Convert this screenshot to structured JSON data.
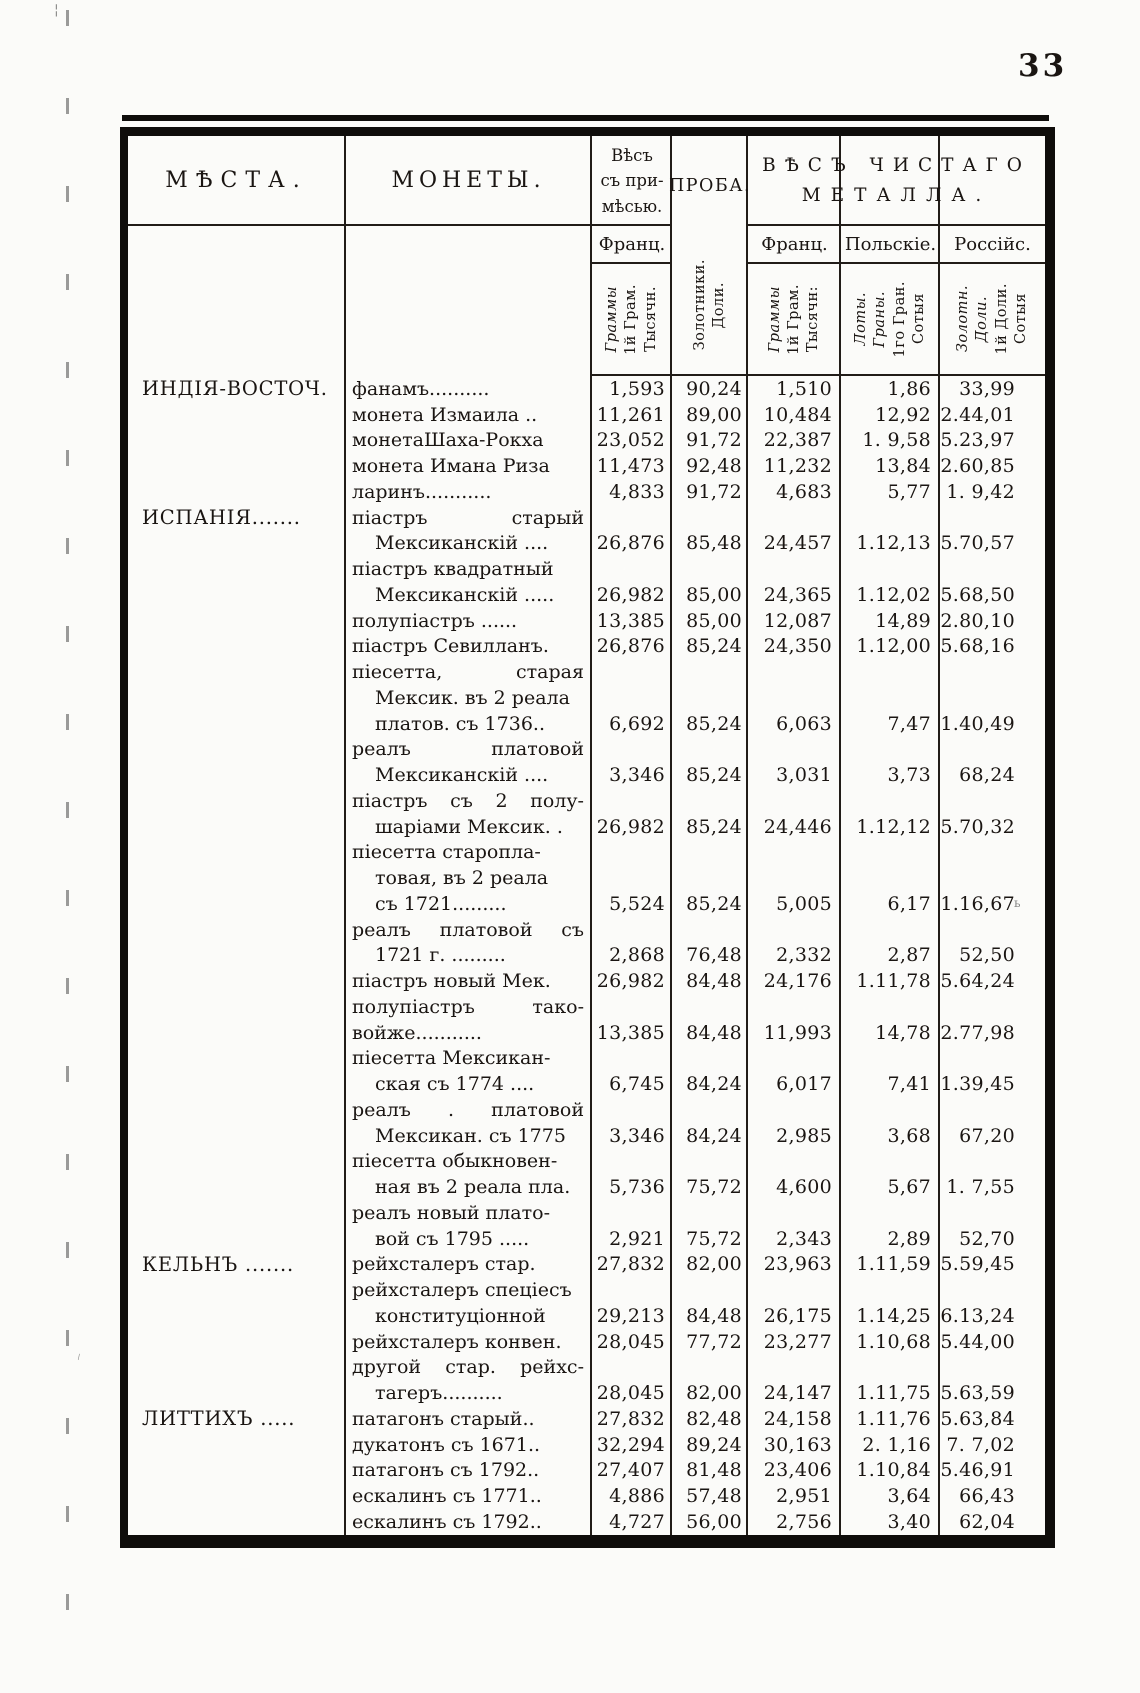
{
  "page": {
    "number": "33",
    "paper_color": "#fbfbf9",
    "ink_color": "#1a1512"
  },
  "header": {
    "col_places": "МѢСТА.",
    "col_coins": "МОНЕТЫ.",
    "col_gross": [
      "Вѣсъ",
      "съ при-",
      "мѣсью."
    ],
    "col_proba": "ПРОБА.",
    "col_pure": [
      "ВѢСЪ ЧИСТАГО",
      "МЕТАЛЛА."
    ],
    "sub_labels": {
      "gross_franc": "Франц.",
      "pure_franc": "Франц.",
      "pure_polish": "Польскіе.",
      "pure_russian": "Россійс."
    },
    "rotated_units": {
      "gross_franc": [
        {
          "t": "Граммы",
          "i": 1
        },
        {
          "t": "1й Грам."
        },
        {
          "t": "Тысячн."
        }
      ],
      "proba": [
        {
          "t": "Золотники."
        },
        {
          "t": "Доли."
        }
      ],
      "pure_franc": [
        {
          "t": "Граммы",
          "i": 1
        },
        {
          "t": "1й Грам."
        },
        {
          "t": "Тысячн:"
        }
      ],
      "pure_polish": [
        {
          "t": "Лоты.",
          "i": 1
        },
        {
          "t": "Граны.",
          "i": 1
        },
        {
          "t": "1го Гран."
        },
        {
          "t": "Сотыя"
        }
      ],
      "pure_russian": [
        {
          "t": "Золотн.",
          "i": 1
        },
        {
          "t": "Доли.",
          "i": 1
        },
        {
          "t": "1й Доли."
        },
        {
          "t": "Сотыя"
        }
      ]
    }
  },
  "rows": [
    {
      "p": "ИНДІЯ-ВОСТОЧ.",
      "c": "фанамъ..........",
      "v": [
        "1,593",
        "90,24",
        "1,510",
        "1,86",
        "33,99"
      ]
    },
    {
      "c": "монета Измаила ..",
      "v": [
        "11,261",
        "89,00",
        "10,484",
        "12,92",
        "2.44,01"
      ]
    },
    {
      "c": "монетаШаха-Рокха",
      "v": [
        "23,052",
        "91,72",
        "22,387",
        "1. 9,58",
        "5.23,97"
      ]
    },
    {
      "c": "монета Имана Риза",
      "v": [
        "11,473",
        "92,48",
        "11,232",
        "13,84",
        "2.60,85"
      ]
    },
    {
      "c": "ларинъ...........",
      "v": [
        "4,833",
        "91,72",
        "4,683",
        "5,77",
        "1. 9,42"
      ]
    },
    {
      "p": "ИСПАНІЯ.......",
      "c": "піастръ старый",
      "j": 1
    },
    {
      "c": "Мексиканскій ....",
      "ind": 1,
      "v": [
        "26,876",
        "85,48",
        "24,457",
        "1.12,13",
        "5.70,57"
      ]
    },
    {
      "c": "піастръ квадратный"
    },
    {
      "c": "Мексиканскій .....",
      "ind": 1,
      "v": [
        "26,982",
        "85,00",
        "24,365",
        "1.12,02",
        "5.68,50"
      ]
    },
    {
      "c": "полупіастръ ......",
      "v": [
        "13,385",
        "85,00",
        "12,087",
        "14,89",
        "2.80,10"
      ]
    },
    {
      "c": "піастръ Севилланъ.",
      "v": [
        "26,876",
        "85,24",
        "24,350",
        "1.12,00",
        "5.68,16"
      ]
    },
    {
      "c": "піесетта, старая",
      "j": 1
    },
    {
      "c": "Мексик. въ 2 реала",
      "ind": 1
    },
    {
      "c": "платов. съ 1736..",
      "ind": 1,
      "v": [
        "6,692",
        "85,24",
        "6,063",
        "7,47",
        "1.40,49"
      ]
    },
    {
      "c": "реалъ платовой",
      "j": 1
    },
    {
      "c": "Мексиканскій ....",
      "ind": 1,
      "v": [
        "3,346",
        "85,24",
        "3,031",
        "3,73",
        "68,24"
      ]
    },
    {
      "c": "піастръ съ 2 полу-",
      "j": 1
    },
    {
      "c": "шаріами Мексик. .",
      "ind": 1,
      "v": [
        "26,982",
        "85,24",
        "24,446",
        "1.12,12",
        "5.70,32"
      ]
    },
    {
      "c": "піесетта старопла-"
    },
    {
      "c": "товая, въ 2 реала",
      "ind": 1
    },
    {
      "c": "съ 1721.........",
      "ind": 1,
      "v": [
        "5,524",
        "85,24",
        "5,005",
        "6,17",
        "1.16,67"
      ]
    },
    {
      "c": "реалъ платовой съ",
      "j": 1
    },
    {
      "c": "1721 г. .........",
      "ind": 1,
      "v": [
        "2,868",
        "76,48",
        "2,332",
        "2,87",
        "52,50"
      ]
    },
    {
      "c": "піастръ новый Мек.",
      "v": [
        "26,982",
        "84,48",
        "24,176",
        "1.11,78",
        "5.64,24"
      ]
    },
    {
      "c": "полупіастръ тако-",
      "j": 1
    },
    {
      "c": "войже...........",
      "v": [
        "13,385",
        "84,48",
        "11,993",
        "14,78",
        "2.77,98"
      ]
    },
    {
      "c": "піесетта Мексикан-"
    },
    {
      "c": "ская съ 1774 ....",
      "ind": 1,
      "v": [
        "6,745",
        "84,24",
        "6,017",
        "7,41",
        "1.39,45"
      ]
    },
    {
      "c": "реалъ . платовой",
      "j": 1
    },
    {
      "c": "Мексикан. съ 1775",
      "ind": 1,
      "v": [
        "3,346",
        "84,24",
        "2,985",
        "3,68",
        "67,20"
      ]
    },
    {
      "c": "піесетта обыкновен-"
    },
    {
      "c": "ная въ 2 реала пла.",
      "ind": 1,
      "v": [
        "5,736",
        "75,72",
        "4,600",
        "5,67",
        "1. 7,55"
      ]
    },
    {
      "c": "реалъ новый плато-"
    },
    {
      "c": "вой съ 1795 .....",
      "ind": 1,
      "v": [
        "2,921",
        "75,72",
        "2,343",
        "2,89",
        "52,70"
      ]
    },
    {
      "p": "КЕЛЬНЪ .......",
      "c": "рейхсталеръ стар.",
      "v": [
        "27,832",
        "82,00",
        "23,963",
        "1.11,59",
        "5.59,45"
      ]
    },
    {
      "c": "рейхсталеръ спеціесъ"
    },
    {
      "c": "конституціонной",
      "ind": 1,
      "v": [
        "29,213",
        "84,48",
        "26,175",
        "1.14,25",
        "6.13,24"
      ]
    },
    {
      "c": "рейхсталеръ конвен.",
      "v": [
        "28,045",
        "77,72",
        "23,277",
        "1.10,68",
        "5.44,00"
      ]
    },
    {
      "c": "другой стар. рейхс-",
      "j": 1
    },
    {
      "c": "тагеръ..........",
      "ind": 1,
      "v": [
        "28,045",
        "82,00",
        "24,147",
        "1.11,75",
        "5.63,59"
      ]
    },
    {
      "p": "ЛИТТИХЪ .....",
      "c": "патагонъ старый..",
      "v": [
        "27,832",
        "82,48",
        "24,158",
        "1.11,76",
        "5.63,84"
      ]
    },
    {
      "c": "дукатонъ съ 1671..",
      "v": [
        "32,294",
        "89,24",
        "30,163",
        "2. 1,16",
        "7. 7,02"
      ]
    },
    {
      "c": "патагонъ съ 1792..",
      "v": [
        "27,407",
        "81,48",
        "23,406",
        "1.10,84",
        "5.46,91"
      ]
    },
    {
      "c": "ескалинъ съ 1771..",
      "v": [
        "4,886",
        "57,48",
        "2,951",
        "3,64",
        "66,43"
      ]
    },
    {
      "c": "ескалинъ съ 1792..",
      "v": [
        "4,727",
        "56,00",
        "2,756",
        "3,40",
        "62,04"
      ]
    }
  ]
}
